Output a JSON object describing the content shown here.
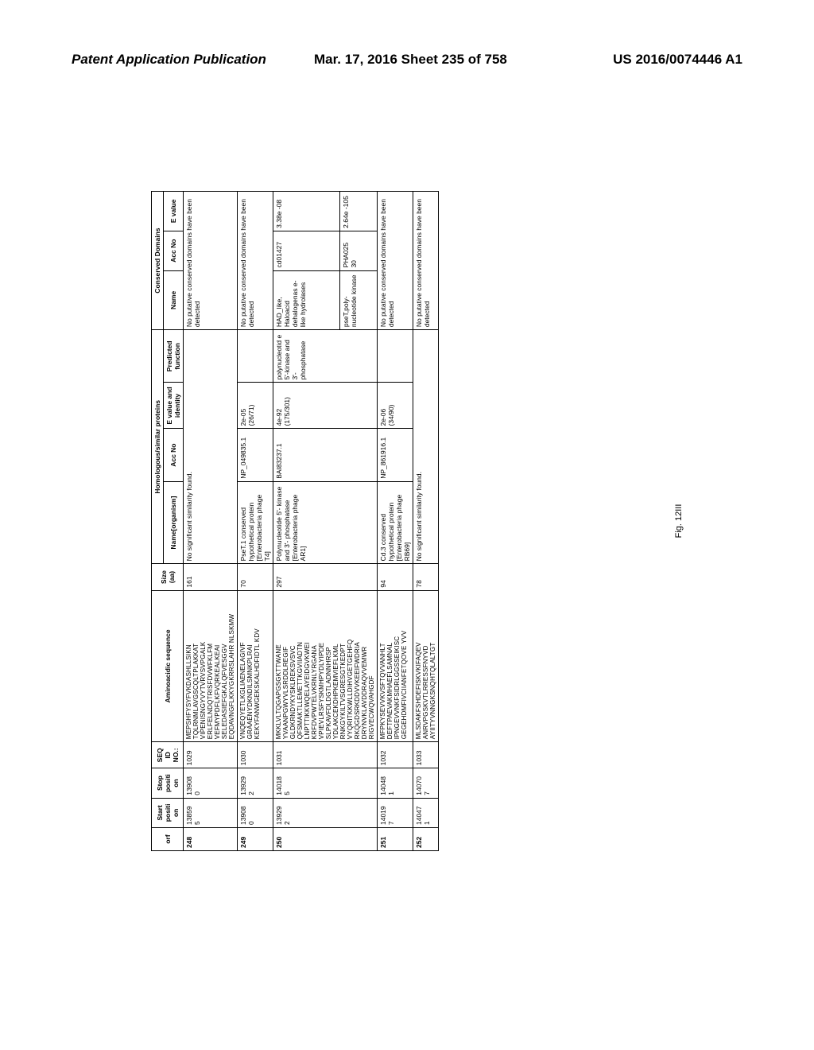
{
  "header": {
    "left": "Patent Application Publication",
    "center": "Mar. 17, 2016  Sheet 235 of 758",
    "right": "US 2016/0074446 A1"
  },
  "figure_label": "Fig. 12III",
  "table": {
    "group_headers": {
      "homologous": "Homologous/similar proteins",
      "conserved": "Conserved Domains"
    },
    "columns": [
      "orf",
      "Start positi on",
      "Stop positi on",
      "SEQ ID NO.:",
      "Aminoacidic sequence",
      "Size (aa)",
      "Name[organism]",
      "Acc No",
      "E value and identity",
      "Predicted function",
      "Name",
      "Acc No",
      "E value"
    ],
    "rows": [
      {
        "orf": "248",
        "start": "13859 5",
        "stop": "13908 0",
        "seq": "1029",
        "amino": "MEPSHFYSYFVKDASHLLSIKN TQLRNMLAVGSCQLTPLAKKAT VIPENISNGYVYTVRVSVPGALK ERLFELNDQTRISFDVWFKLFM VEFMYPDFLKFVQRKEALKEAI SELEDASIEFGKALQFVESGGV EQDAVNGFLKKYGKRRSLAHR NLSKMW",
        "size": "161",
        "name_org": "No significant similarity found.",
        "acc": "",
        "eval": "",
        "pred": "",
        "dname": "No putative conserved domains have been detected",
        "dacc": "",
        "deval": ""
      },
      {
        "orf": "249",
        "start": "13908 0",
        "stop": "13929 2",
        "seq": "1030",
        "amino": "VNQEQYETLKGLIAENELAGIVF GRAAENYDKNDILSMNKPLRAI KEKYFANWGEKSKALHDFIDTL KDV",
        "size": "70",
        "name_org": "PseT.1 conserved hypothetical protein [Enterobacteria phage T4]",
        "acc": "NP_049835.1",
        "eval": "2e-05 (26/71)",
        "pred": "",
        "dname": "No putative conserved domains have been detected",
        "dacc": "",
        "deval": ""
      },
      {
        "orf": "250",
        "start": "13929 2",
        "stop": "14018 5",
        "seq": "1031",
        "amino": "MKKLVLTQGAPGSGKTTWANE YVAANPGWYVLSRDDLREGIF GLDKRNDYKYSKLREKSVSVC QFSMAKTLLEMETTKGVIIADTN LNPTTIKKWQELAYEIDGVKWEI KRFDVPWTELVKRNLYRGANA VPIEVLRSFYSKMHPYDLYIPDE SLPKAVFDLDGTLADNNHRSP YDLAKCEKDHPKEMVIEFLKML RNKGYKILTVSGRESGTKEDPT VYQRITKKWLLDIHVGETGEHFQ RKQGDSRKDDVVKEEIFWDRIA DRYNVKLAVDDRAQVVEMWR RIGVECWQVAHGDF",
        "size": "297",
        "name_org": "Polynucleotide 5'- kinase and 3'- phosphatase [Enterobacteria phage AR1]",
        "acc": "BAI83237.1",
        "eval": "4e-92 (175/301)",
        "pred": "polynucleotid e 5'-kinase and 3'- phosphatase",
        "dname": "HAD_like, Haloacid dehalogenas e-like hydrolases",
        "dacc": "cd01427",
        "deval": "3.38e -08"
      },
      {
        "orf": "",
        "start": "",
        "stop": "",
        "seq": "",
        "amino": "",
        "size": "",
        "name_org": "",
        "acc": "",
        "eval": "",
        "pred": "",
        "dname": "pseT,poly- nucleotide kinase",
        "dacc": "PHA025 30",
        "deval": "2.64e -105"
      },
      {
        "orf": "251",
        "start": "14019 7",
        "stop": "14048 1",
        "seq": "1032",
        "amino": "MFPKYSEVVKVSFTQVVANHLT DEFTPAEVAKMHAEFLSAMNAL IPNGEVVNKFSIDRLGGSSEIKISC GEGEHDMFIVCIIANFETQOVE YVV",
        "size": "94",
        "name_org": "Cd.3 conserved hypothetical protein [Enterobacteria phage RB69]",
        "acc": "NP_861916.1",
        "eval": "2e-06 (34/90)",
        "pred": "",
        "dname": "No putative conserved domains have been detected",
        "dacc": "",
        "deval": ""
      },
      {
        "orf": "252",
        "start": "14047 1",
        "stop": "14070 7",
        "seq": "1033",
        "amino": "MLSDAKFSHDEFISKVKIFAQEV ANRVPGSKVTLRRESSFNYVD AYIITYVNNGKSNQHTQLALTGT",
        "size": "78",
        "name_org": "No significant similarity found.",
        "acc": "",
        "eval": "",
        "pred": "",
        "dname": "No putative conserved domains have been detected",
        "dacc": "",
        "deval": ""
      }
    ]
  }
}
